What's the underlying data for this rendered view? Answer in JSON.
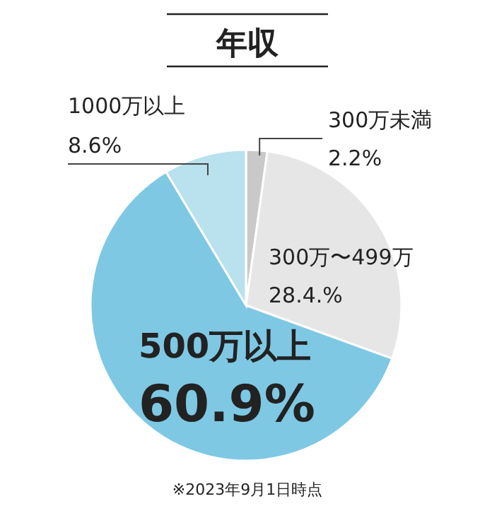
{
  "chart_data": {
    "type": "pie",
    "title": "年収",
    "categories": [
      "300万未満",
      "300万〜499万",
      "500万以上",
      "1000万以上"
    ],
    "values": [
      2.2,
      28.4,
      60.9,
      8.6
    ],
    "value_labels": [
      "2.2%",
      "28.4.%",
      "60.9%",
      "8.6%"
    ],
    "colors": [
      "#c9c9c9",
      "#e6e6e6",
      "#7ec8e4",
      "#b9e1ee"
    ],
    "annotations": [
      "※2023年9月1日時点"
    ]
  }
}
